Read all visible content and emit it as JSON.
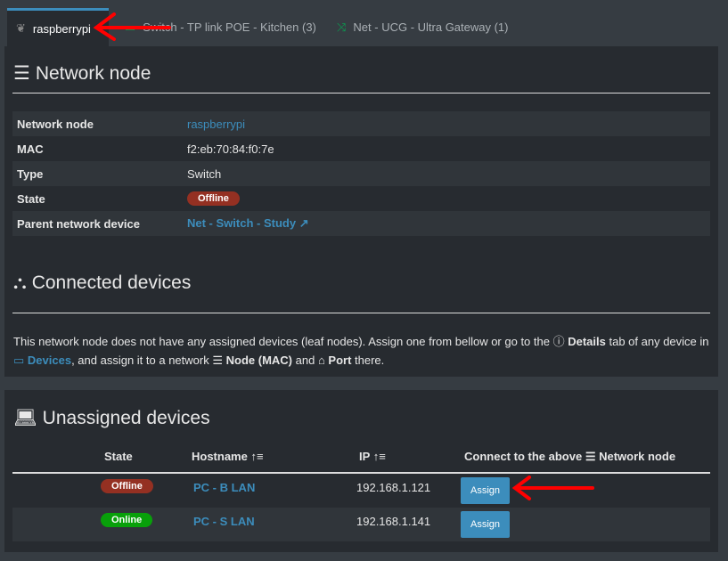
{
  "tabs": [
    {
      "label": "raspberrypi",
      "icon": "raspberry-pi-icon",
      "active": true
    },
    {
      "label": "Switch - TP link POE - Kitchen (3)",
      "icon": "switch-icon"
    },
    {
      "label": "Net - UCG - Ultra Gateway (1)",
      "icon": "shuffle-icon"
    }
  ],
  "node": {
    "title": "Network node",
    "rows": [
      {
        "k": "Network node",
        "v": "raspberrypi"
      },
      {
        "k": "MAC",
        "v": "f2:eb:70:84:f0:7e"
      },
      {
        "k": "Type",
        "v": "Switch"
      },
      {
        "k": "State",
        "v": "Offline"
      },
      {
        "k": "Parent network device",
        "v": "Net - Switch - Study"
      }
    ]
  },
  "connected": {
    "title": "Connected devices",
    "t1": "This network node does not have any assigned devices (leaf nodes). Assign one from bellow or go to the ",
    "details": "Details",
    "t2": " tab of any device in ",
    "devices": "Devices",
    "t3": ", and assign it to a network ",
    "node": "Node (MAC)",
    "t4": " and ",
    "port": "Port",
    "t5": " there."
  },
  "unassigned": {
    "title": "Unassigned devices",
    "headers": [
      "State",
      "Hostname",
      "IP",
      "Connect to the above",
      "Network node"
    ],
    "rows": [
      {
        "state": "Offline",
        "host": "PC - B LAN",
        "ip": "192.168.1.121",
        "btn": "Assign"
      },
      {
        "state": "Online",
        "host": "PC - S LAN",
        "ip": "192.168.1.141",
        "btn": "Assign"
      }
    ]
  },
  "colors": {
    "accent": "#3c8dbc",
    "offline": "#943022",
    "online": "#08a00a"
  }
}
